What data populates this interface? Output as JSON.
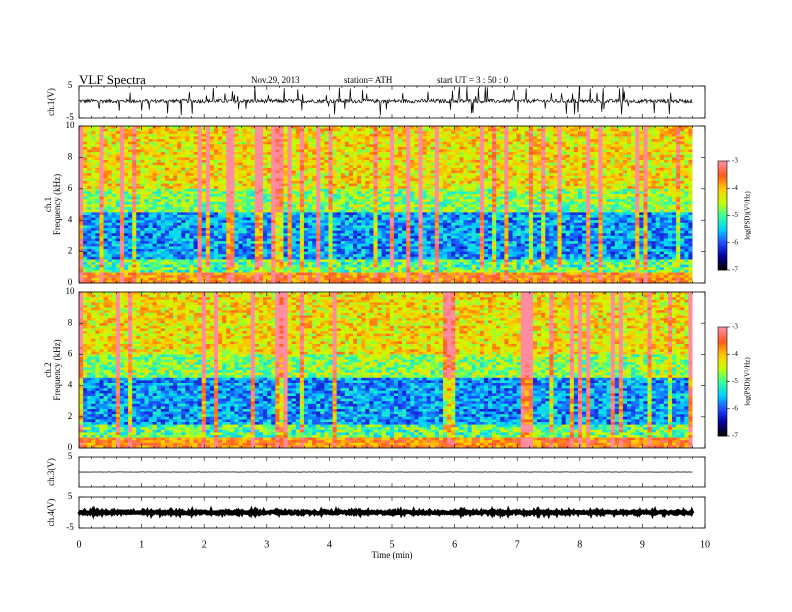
{
  "header": {
    "title": "VLF  Spectra",
    "date": "Nov.29, 2013",
    "station": "station= ATH",
    "start": "start  UT  =    3  : 50 : 0"
  },
  "chart_data": [
    {
      "type": "line",
      "panel": "ch1-waveform",
      "ylabel": "ch.1(V)",
      "ylim": [
        -5,
        5
      ],
      "yticks": [
        "5",
        "-5"
      ],
      "xlim": [
        0,
        10
      ],
      "data_xlim": [
        0,
        9.8
      ],
      "baseline": 0.3,
      "noise_amplitude": 0.6,
      "color": "#000000"
    },
    {
      "type": "heatmap",
      "panel": "ch1-spectrogram",
      "ylabel": "ch.1\nFrequency  (kHz)",
      "ylim": [
        0,
        10
      ],
      "yticks": [
        "0",
        "2",
        "4",
        "6",
        "8",
        "10"
      ],
      "xlim": [
        0,
        10
      ],
      "data_xlim": [
        0,
        9.8
      ],
      "z_label": "log(PSD)(V²/Hz)",
      "zlim": [
        -7,
        -3
      ],
      "zticks": [
        "-3",
        "-4",
        "-5",
        "-6",
        "-7"
      ]
    },
    {
      "type": "heatmap",
      "panel": "ch2-spectrogram",
      "ylabel": "ch.2\nFrequency  (kHz)",
      "ylim": [
        0,
        10
      ],
      "yticks": [
        "0",
        "2",
        "4",
        "6",
        "8",
        "10"
      ],
      "xlim": [
        0,
        10
      ],
      "data_xlim": [
        0,
        9.8
      ],
      "z_label": "log(PSD)(V²/Hz)",
      "zlim": [
        -7,
        -3
      ],
      "zticks": [
        "-3",
        "-4",
        "-5",
        "-6",
        "-7"
      ]
    },
    {
      "type": "line",
      "panel": "ch3-waveform",
      "ylabel": "ch.3(V)",
      "ylim": [
        -5,
        5
      ],
      "yticks": [
        "5"
      ],
      "xlim": [
        0,
        10
      ],
      "data_xlim": [
        0,
        9.8
      ],
      "baseline": 0,
      "noise_amplitude": 0.05,
      "color": "#000000"
    },
    {
      "type": "line",
      "panel": "ch4-waveform",
      "ylabel": "ch.4(V)",
      "ylim": [
        -5,
        5
      ],
      "yticks": [
        "5",
        "-5"
      ],
      "xlim": [
        0,
        10
      ],
      "data_xlim": [
        0,
        9.8
      ],
      "baseline": 0,
      "noise_amplitude": 0.35,
      "color": "#000000"
    }
  ],
  "x_axis": {
    "label": "Time  (min)",
    "ticks": [
      "0",
      "1",
      "2",
      "3",
      "4",
      "5",
      "6",
      "7",
      "8",
      "9",
      "10"
    ]
  },
  "colors": {
    "scale": [
      "#000000",
      "#0000a0",
      "#1e50ff",
      "#00d2ff",
      "#3cff96",
      "#c8ff00",
      "#ffc800",
      "#ff5a1e",
      "#ff8ca0"
    ]
  }
}
